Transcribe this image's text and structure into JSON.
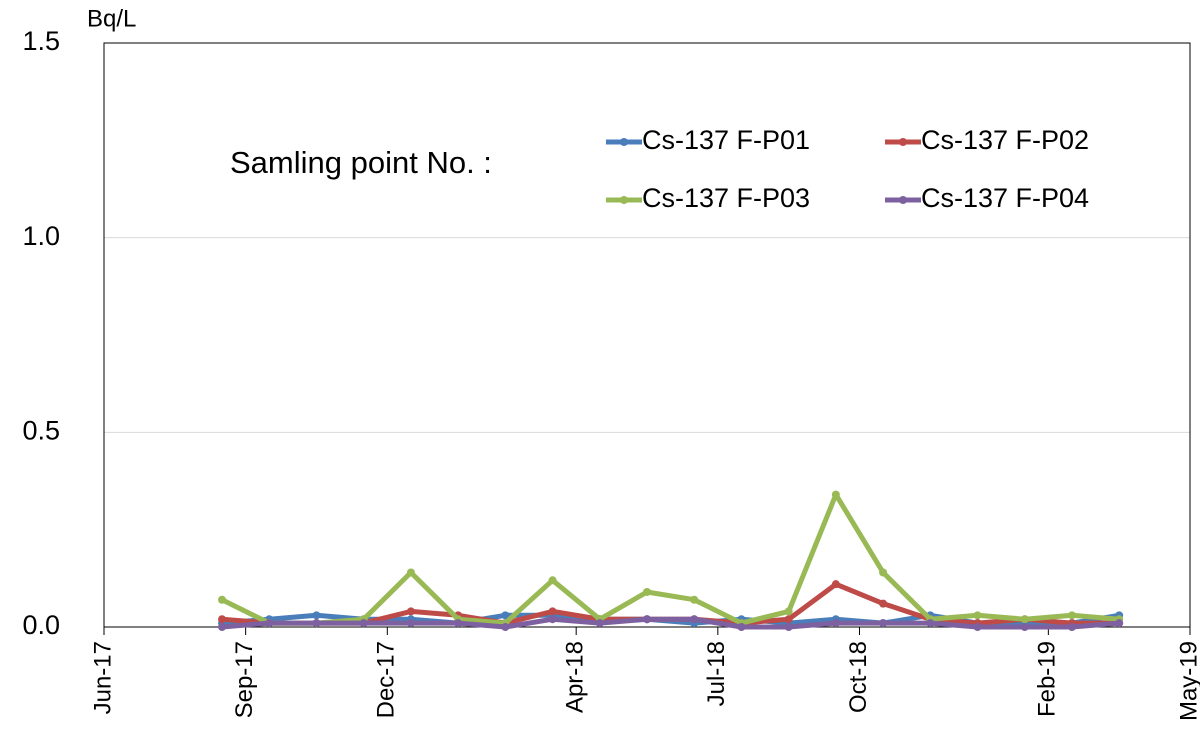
{
  "chart_data": {
    "type": "line",
    "y_unit": "Bq/L",
    "legend_title": "Samling point No. :",
    "x": [
      "2017-08",
      "2017-09",
      "2017-10",
      "2017-11",
      "2017-12",
      "2018-01",
      "2018-02",
      "2018-03",
      "2018-04",
      "2018-05",
      "2018-06",
      "2018-07",
      "2018-08",
      "2018-09",
      "2018-10",
      "2018-11",
      "2018-12",
      "2019-01",
      "2019-02",
      "2019-03"
    ],
    "series": [
      {
        "name": "Cs-137 F-P01",
        "color": "#4a7ebb",
        "values": [
          0.01,
          0.02,
          0.03,
          0.02,
          0.02,
          0.01,
          0.03,
          0.03,
          0.02,
          0.02,
          0.01,
          0.02,
          0.01,
          0.02,
          0.01,
          0.03,
          0.01,
          0.01,
          0.01,
          0.03
        ]
      },
      {
        "name": "Cs-137 F-P02",
        "color": "#be4b48",
        "values": [
          0.02,
          0.01,
          0.01,
          0.01,
          0.04,
          0.03,
          0.01,
          0.04,
          0.02,
          0.02,
          0.02,
          0.01,
          0.02,
          0.11,
          0.06,
          0.02,
          0.01,
          0.02,
          0.01,
          0.01
        ]
      },
      {
        "name": "Cs-137 F-P03",
        "color": "#98b954",
        "values": [
          0.07,
          0.01,
          0.01,
          0.02,
          0.14,
          0.02,
          0.01,
          0.12,
          0.02,
          0.09,
          0.07,
          0.01,
          0.04,
          0.34,
          0.14,
          0.02,
          0.03,
          0.02,
          0.03,
          0.02
        ]
      },
      {
        "name": "Cs-137 F-P04",
        "color": "#7d60a0",
        "values": [
          0.0,
          0.01,
          0.01,
          0.01,
          0.01,
          0.01,
          0.0,
          0.02,
          0.01,
          0.02,
          0.02,
          0.0,
          0.0,
          0.01,
          0.01,
          0.01,
          0.0,
          0.0,
          0.0,
          0.01
        ]
      }
    ],
    "xlim": [
      "2017-06",
      "2019-05"
    ],
    "xticks": [
      {
        "value": "2017-06",
        "label": "Jun-17"
      },
      {
        "value": "2017-09",
        "label": "Sep-17"
      },
      {
        "value": "2017-12",
        "label": "Dec-17"
      },
      {
        "value": "2018-04",
        "label": "Apr-18"
      },
      {
        "value": "2018-07",
        "label": "Jul-18"
      },
      {
        "value": "2018-10",
        "label": "Oct-18"
      },
      {
        "value": "2019-02",
        "label": "Feb-19"
      },
      {
        "value": "2019-05",
        "label": "May-19"
      }
    ],
    "ylim": [
      0,
      1.5
    ],
    "yticks": [
      {
        "value": 0,
        "label": "0.0"
      },
      0.5,
      {
        "value": 1,
        "label": "1.0"
      },
      1.5
    ],
    "grid": true
  }
}
